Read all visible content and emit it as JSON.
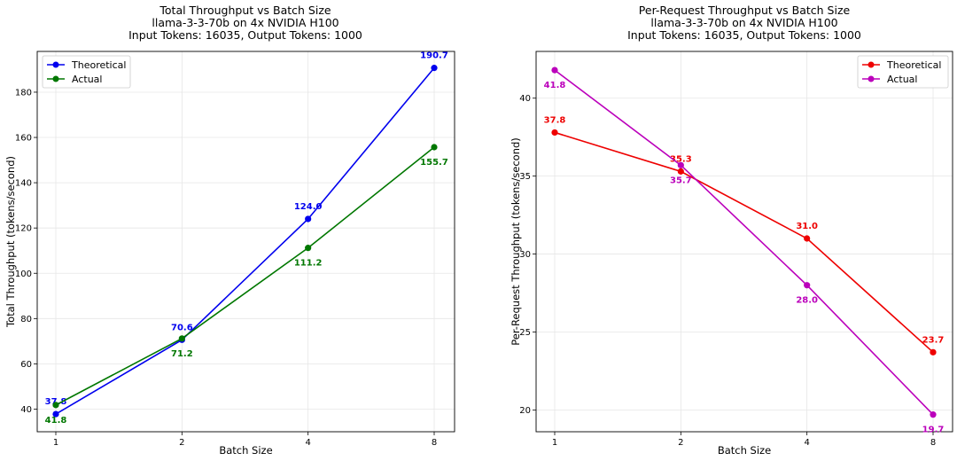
{
  "chart_data": [
    {
      "type": "line",
      "title": "Total Throughput vs Batch Size",
      "subtitle_line1": "llama-3-3-70b on 4x NVIDIA H100",
      "subtitle_line2": "Input Tokens: 16035, Output Tokens: 1000",
      "xlabel": "Batch Size",
      "ylabel": "Total Throughput (tokens/second)",
      "x": [
        1,
        2,
        4,
        8
      ],
      "x_scale": "log2",
      "xticks": [
        "1",
        "2",
        "4",
        "8"
      ],
      "yticks": [
        "40",
        "60",
        "80",
        "100",
        "120",
        "140",
        "160",
        "180"
      ],
      "ylim": [
        30,
        198
      ],
      "grid": true,
      "legend_position": "top-left",
      "series": [
        {
          "name": "Theoretical",
          "color": "#0000ee",
          "values": [
            37.8,
            70.6,
            124.0,
            190.7
          ],
          "labels": [
            "37.8",
            "70.6",
            "124.0",
            "190.7"
          ],
          "label_side": "above"
        },
        {
          "name": "Actual",
          "color": "#007700",
          "values": [
            41.8,
            71.2,
            111.2,
            155.7
          ],
          "labels": [
            "41.8",
            "71.2",
            "111.2",
            "155.7"
          ],
          "label_side": "below"
        }
      ]
    },
    {
      "type": "line",
      "title": "Per-Request Throughput vs Batch Size",
      "subtitle_line1": "llama-3-3-70b on 4x NVIDIA H100",
      "subtitle_line2": "Input Tokens: 16035, Output Tokens: 1000",
      "xlabel": "Batch Size",
      "ylabel": "Per-Request Throughput (tokens/second)",
      "x": [
        1,
        2,
        4,
        8
      ],
      "x_scale": "log2",
      "xticks": [
        "1",
        "2",
        "4",
        "8"
      ],
      "yticks": [
        "20",
        "25",
        "30",
        "35",
        "40"
      ],
      "ylim": [
        18.6,
        43.0
      ],
      "grid": true,
      "legend_position": "top-right",
      "series": [
        {
          "name": "Theoretical",
          "color": "#ee0000",
          "values": [
            37.8,
            35.3,
            31.0,
            23.7
          ],
          "labels": [
            "37.8",
            "35.3",
            "31.0",
            "23.7"
          ],
          "label_side": "above"
        },
        {
          "name": "Actual",
          "color": "#bb00bb",
          "values": [
            41.8,
            35.7,
            28.0,
            19.7
          ],
          "labels": [
            "41.8",
            "35.7",
            "28.0",
            "19.7"
          ],
          "label_side": "below"
        }
      ]
    }
  ]
}
